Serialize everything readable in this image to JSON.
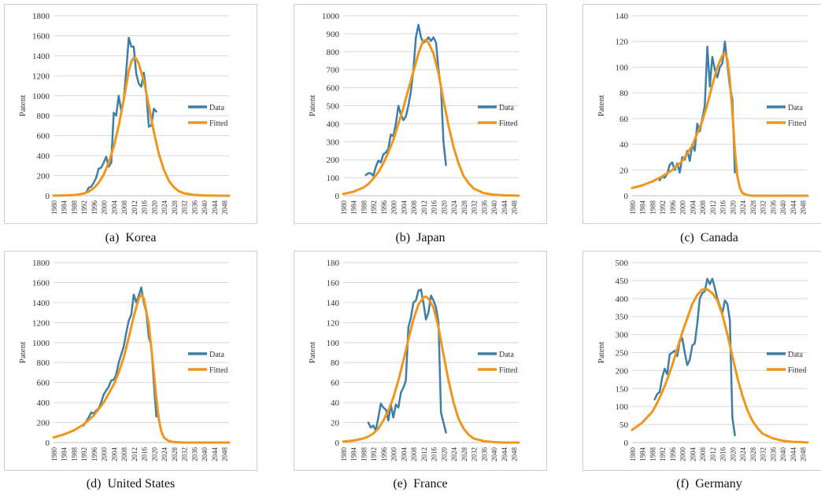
{
  "colors": {
    "data": "#3e7fa8",
    "fitted": "#f0961e",
    "grid": "#d9d9d9"
  },
  "chart_data": [
    {
      "type": "line",
      "caption_label": "(a)",
      "caption_name": "Korea",
      "ylabel": "Patent",
      "ylim": [
        0,
        1800
      ],
      "yticks": [
        0,
        200,
        400,
        600,
        800,
        1000,
        1200,
        1400,
        1600,
        1800
      ],
      "xlim": [
        1980,
        2050
      ],
      "xticks": [
        1980,
        1984,
        1988,
        1992,
        1996,
        2000,
        2004,
        2008,
        2012,
        2016,
        2020,
        2024,
        2028,
        2032,
        2036,
        2040,
        2044,
        2048
      ],
      "legend": [
        "Data",
        "Fitted"
      ],
      "series": [
        {
          "name": "Data",
          "x": [
            1992,
            1993,
            1994,
            1995,
            1996,
            1997,
            1998,
            1999,
            2000,
            2001,
            2002,
            2003,
            2004,
            2005,
            2006,
            2007,
            2008,
            2009,
            2010,
            2011,
            2012,
            2013,
            2014,
            2015,
            2016,
            2017,
            2018,
            2019,
            2020,
            2021
          ],
          "y": [
            20,
            30,
            80,
            90,
            130,
            180,
            270,
            280,
            330,
            390,
            290,
            330,
            830,
            800,
            1000,
            850,
            960,
            1250,
            1580,
            1490,
            1490,
            1220,
            1120,
            1090,
            1230,
            1030,
            690,
            700,
            870,
            840
          ]
        },
        {
          "name": "Fitted",
          "x": [
            1980,
            1984,
            1988,
            1990,
            1992,
            1994,
            1996,
            1998,
            2000,
            2002,
            2004,
            2006,
            2008,
            2010,
            2011,
            2012,
            2013,
            2014,
            2016,
            2018,
            2020,
            2022,
            2024,
            2026,
            2028,
            2030,
            2032,
            2036,
            2040,
            2044,
            2048,
            2050
          ],
          "y": [
            1,
            3,
            7,
            12,
            22,
            40,
            75,
            130,
            210,
            330,
            490,
            700,
            960,
            1250,
            1340,
            1380,
            1370,
            1320,
            1150,
            900,
            640,
            420,
            260,
            150,
            85,
            45,
            25,
            8,
            3,
            1,
            0,
            0
          ]
        }
      ]
    },
    {
      "type": "line",
      "caption_label": "(b)",
      "caption_name": "Japan",
      "ylabel": "Patent",
      "ylim": [
        0,
        1000
      ],
      "yticks": [
        0,
        100,
        200,
        300,
        400,
        500,
        600,
        700,
        800,
        900,
        1000
      ],
      "xlim": [
        1980,
        2050
      ],
      "xticks": [
        1980,
        1984,
        1988,
        1992,
        1996,
        2000,
        2004,
        2008,
        2012,
        2016,
        2020,
        2024,
        2028,
        2032,
        2036,
        2040,
        2044,
        2048
      ],
      "legend": [
        "Data",
        "Fitted"
      ],
      "series": [
        {
          "name": "Data",
          "x": [
            1989,
            1990,
            1991,
            1992,
            1993,
            1994,
            1995,
            1996,
            1997,
            1998,
            1999,
            2000,
            2001,
            2002,
            2003,
            2004,
            2005,
            2006,
            2007,
            2008,
            2009,
            2010,
            2011,
            2012,
            2013,
            2014,
            2015,
            2016,
            2017,
            2018,
            2019,
            2020,
            2021
          ],
          "y": [
            115,
            125,
            125,
            110,
            160,
            195,
            185,
            230,
            240,
            260,
            340,
            330,
            400,
            500,
            450,
            420,
            440,
            500,
            580,
            700,
            880,
            950,
            880,
            850,
            860,
            880,
            860,
            880,
            850,
            700,
            600,
            300,
            170
          ]
        },
        {
          "name": "Fitted",
          "x": [
            1980,
            1984,
            1988,
            1990,
            1992,
            1994,
            1996,
            1998,
            2000,
            2002,
            2004,
            2006,
            2008,
            2010,
            2011,
            2012,
            2013,
            2014,
            2016,
            2018,
            2020,
            2022,
            2024,
            2026,
            2028,
            2030,
            2032,
            2036,
            2040,
            2044,
            2048,
            2050
          ],
          "y": [
            10,
            22,
            45,
            65,
            95,
            130,
            180,
            240,
            310,
            400,
            490,
            590,
            690,
            790,
            830,
            860,
            865,
            850,
            790,
            680,
            530,
            390,
            270,
            180,
            110,
            70,
            40,
            15,
            6,
            2,
            1,
            0
          ]
        }
      ]
    },
    {
      "type": "line",
      "caption_label": "(c)",
      "caption_name": "Canada",
      "ylabel": "Patent",
      "ylim": [
        0,
        140
      ],
      "yticks": [
        0,
        20,
        40,
        60,
        80,
        100,
        120,
        140
      ],
      "xlim": [
        1980,
        2050
      ],
      "xticks": [
        1980,
        1984,
        1988,
        1992,
        1996,
        2000,
        2004,
        2008,
        2012,
        2016,
        2020,
        2024,
        2028,
        2032,
        2036,
        2040,
        2044,
        2048
      ],
      "legend": [
        "Data",
        "Fitted"
      ],
      "series": [
        {
          "name": "Data",
          "x": [
            1991,
            1992,
            1993,
            1994,
            1995,
            1996,
            1997,
            1998,
            1999,
            2000,
            2001,
            2002,
            2003,
            2004,
            2005,
            2006,
            2007,
            2008,
            2009,
            2010,
            2011,
            2012,
            2013,
            2014,
            2015,
            2016,
            2017,
            2018,
            2019,
            2020,
            2021
          ],
          "y": [
            12,
            15,
            14,
            17,
            24,
            26,
            20,
            25,
            18,
            30,
            28,
            35,
            27,
            40,
            35,
            56,
            50,
            60,
            70,
            116,
            85,
            108,
            98,
            92,
            100,
            103,
            120,
            102,
            85,
            75,
            18
          ]
        },
        {
          "name": "Fitted",
          "x": [
            1980,
            1984,
            1988,
            1992,
            1996,
            2000,
            2004,
            2008,
            2010,
            2012,
            2014,
            2016,
            2017,
            2018,
            2019,
            2020,
            2021,
            2022,
            2023,
            2024,
            2026,
            2028,
            2032,
            2040,
            2048,
            2050
          ],
          "y": [
            6,
            8,
            11,
            15,
            20,
            27,
            39,
            58,
            71,
            86,
            100,
            109,
            111,
            106,
            90,
            65,
            35,
            15,
            6,
            2,
            0.5,
            0,
            0,
            0,
            0,
            0
          ]
        }
      ]
    },
    {
      "type": "line",
      "caption_label": "(d)",
      "caption_name": "United  States",
      "ylabel": "Patent",
      "ylim": [
        0,
        1800
      ],
      "yticks": [
        0,
        200,
        400,
        600,
        800,
        1000,
        1200,
        1400,
        1600,
        1800
      ],
      "xlim": [
        1980,
        2050
      ],
      "xticks": [
        1980,
        1984,
        1988,
        1992,
        1996,
        2000,
        2004,
        2008,
        2012,
        2016,
        2020,
        2024,
        2028,
        2032,
        2036,
        2040,
        2044,
        2048
      ],
      "legend": [
        "Data",
        "Fitted"
      ],
      "series": [
        {
          "name": "Data",
          "x": [
            1992,
            1993,
            1994,
            1995,
            1996,
            1997,
            1998,
            1999,
            2000,
            2001,
            2002,
            2003,
            2004,
            2005,
            2006,
            2007,
            2008,
            2009,
            2010,
            2011,
            2012,
            2013,
            2014,
            2015,
            2016,
            2017,
            2018,
            2019,
            2020,
            2021
          ],
          "y": [
            170,
            210,
            250,
            300,
            290,
            320,
            340,
            400,
            480,
            520,
            560,
            620,
            630,
            680,
            800,
            880,
            960,
            1100,
            1220,
            1280,
            1480,
            1400,
            1470,
            1550,
            1400,
            1300,
            1050,
            970,
            600,
            260
          ]
        },
        {
          "name": "Fitted",
          "x": [
            1980,
            1984,
            1988,
            1992,
            1996,
            2000,
            2004,
            2006,
            2008,
            2010,
            2012,
            2014,
            2015,
            2016,
            2018,
            2020,
            2021,
            2022,
            2023,
            2024,
            2026,
            2028,
            2032,
            2040,
            2048,
            2050
          ],
          "y": [
            50,
            80,
            120,
            180,
            270,
            400,
            580,
            700,
            850,
            1050,
            1260,
            1440,
            1480,
            1440,
            1180,
            700,
            450,
            230,
            110,
            50,
            15,
            5,
            0,
            0,
            0,
            0
          ]
        }
      ]
    },
    {
      "type": "line",
      "caption_label": "(e)",
      "caption_name": "France",
      "ylabel": "Patent",
      "ylim": [
        0,
        180
      ],
      "yticks": [
        0,
        20,
        40,
        60,
        80,
        100,
        120,
        140,
        160,
        180
      ],
      "xlim": [
        1980,
        2050
      ],
      "xticks": [
        1980,
        1984,
        1988,
        1992,
        1996,
        2000,
        2004,
        2008,
        2012,
        2016,
        2020,
        2024,
        2028,
        2032,
        2036,
        2040,
        2044,
        2048
      ],
      "legend": [
        "Data",
        "Fitted"
      ],
      "series": [
        {
          "name": "Data",
          "x": [
            1990,
            1991,
            1992,
            1993,
            1994,
            1995,
            1996,
            1997,
            1998,
            1999,
            2000,
            2001,
            2002,
            2003,
            2004,
            2005,
            2006,
            2007,
            2008,
            2009,
            2010,
            2011,
            2012,
            2013,
            2014,
            2015,
            2016,
            2017,
            2018,
            2019,
            2020,
            2021
          ],
          "y": [
            20,
            15,
            17,
            12,
            25,
            39,
            35,
            33,
            22,
            38,
            25,
            38,
            35,
            50,
            55,
            62,
            115,
            125,
            140,
            142,
            152,
            153,
            140,
            123,
            130,
            147,
            142,
            135,
            120,
            30,
            20,
            10
          ]
        },
        {
          "name": "Fitted",
          "x": [
            1980,
            1984,
            1988,
            1990,
            1992,
            1994,
            1996,
            1998,
            2000,
            2002,
            2004,
            2006,
            2008,
            2010,
            2012,
            2013,
            2014,
            2016,
            2018,
            2020,
            2022,
            2024,
            2026,
            2028,
            2030,
            2032,
            2036,
            2040,
            2044,
            2048,
            2050
          ],
          "y": [
            1,
            2,
            4,
            6,
            9,
            14,
            22,
            32,
            45,
            62,
            82,
            103,
            123,
            138,
            145,
            146,
            144,
            135,
            115,
            88,
            62,
            40,
            24,
            14,
            8,
            4,
            1.5,
            0.5,
            0,
            0,
            0
          ]
        }
      ]
    },
    {
      "type": "line",
      "caption_label": "(f)",
      "caption_name": "Germany",
      "ylabel": "Patent",
      "ylim": [
        0,
        500
      ],
      "yticks": [
        0,
        50,
        100,
        150,
        200,
        250,
        300,
        350,
        400,
        450,
        500
      ],
      "xlim": [
        1980,
        2050
      ],
      "xticks": [
        1980,
        1984,
        1988,
        1992,
        1996,
        2000,
        2004,
        2008,
        2012,
        2016,
        2020,
        2024,
        2028,
        2032,
        2036,
        2040,
        2044,
        2048
      ],
      "legend": [
        "Data",
        "Fitted"
      ],
      "series": [
        {
          "name": "Data",
          "x": [
            1989,
            1990,
            1991,
            1992,
            1993,
            1994,
            1995,
            1996,
            1997,
            1998,
            1999,
            2000,
            2001,
            2002,
            2003,
            2004,
            2005,
            2006,
            2007,
            2008,
            2009,
            2010,
            2011,
            2012,
            2013,
            2014,
            2015,
            2016,
            2017,
            2018,
            2019,
            2020,
            2021
          ],
          "y": [
            120,
            135,
            140,
            180,
            205,
            190,
            245,
            250,
            255,
            240,
            280,
            290,
            250,
            215,
            230,
            270,
            275,
            330,
            400,
            415,
            420,
            455,
            440,
            455,
            430,
            400,
            380,
            360,
            395,
            385,
            340,
            70,
            20
          ]
        },
        {
          "name": "Fitted",
          "x": [
            1980,
            1984,
            1988,
            1990,
            1992,
            1994,
            1996,
            1998,
            2000,
            2002,
            2004,
            2006,
            2008,
            2010,
            2011,
            2012,
            2014,
            2016,
            2018,
            2020,
            2022,
            2024,
            2026,
            2028,
            2030,
            2032,
            2036,
            2040,
            2044,
            2048,
            2050
          ],
          "y": [
            35,
            55,
            85,
            110,
            140,
            175,
            215,
            260,
            305,
            345,
            385,
            410,
            425,
            425,
            420,
            415,
            395,
            355,
            300,
            240,
            180,
            130,
            90,
            60,
            40,
            25,
            12,
            5,
            2,
            1,
            0
          ]
        }
      ]
    }
  ]
}
